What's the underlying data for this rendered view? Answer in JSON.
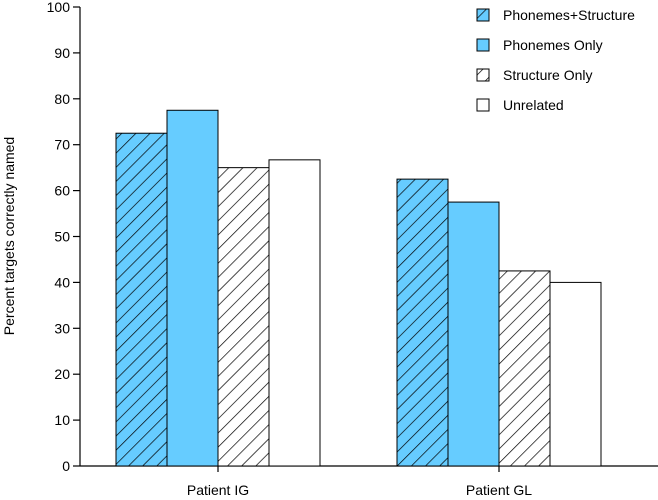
{
  "chart_data": {
    "type": "bar",
    "title": "",
    "xlabel": "",
    "ylabel": "Percent targets correctly named",
    "ylim": [
      0,
      100
    ],
    "yticks": [
      0,
      10,
      20,
      30,
      40,
      50,
      60,
      70,
      80,
      90,
      100
    ],
    "grid": false,
    "legend_position": "top-right",
    "categories": [
      "Patient IG",
      "Patient GL"
    ],
    "series": [
      {
        "name": "Phonemes+Structure",
        "values": [
          72.5,
          62.5
        ],
        "fill": "#66ccff",
        "pattern": "diagonal-hatch"
      },
      {
        "name": "Phonemes Only",
        "values": [
          77.5,
          57.5
        ],
        "fill": "#66ccff",
        "pattern": "solid"
      },
      {
        "name": "Structure Only",
        "values": [
          65,
          42.5
        ],
        "fill": "#ffffff",
        "pattern": "diagonal-hatch"
      },
      {
        "name": "Unrelated",
        "values": [
          66.7,
          40
        ],
        "fill": "#ffffff",
        "pattern": "solid"
      }
    ]
  }
}
